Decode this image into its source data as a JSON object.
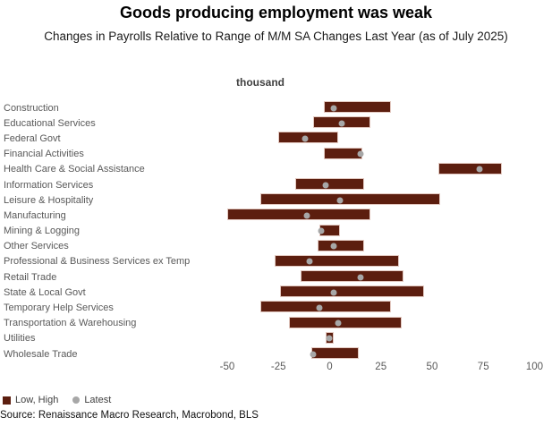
{
  "title": "Goods producing employment was weak",
  "subtitle": "Changes in Payrolls Relative to Range of M/M SA Changes Last Year (as of July 2025)",
  "axis_title": "thousand",
  "legend": {
    "range_label": "Low, High",
    "latest_label": "Latest"
  },
  "source": "Source: Renaissance Macro Research, Macrobond, BLS",
  "colors": {
    "bar": "#5c1e0f",
    "bar_border": "#e3c9c1",
    "dot": "#a7a7a7",
    "tick_text": "#595959",
    "label_text": "#595959"
  },
  "chart_data": {
    "type": "bar",
    "subtype": "horizontal-range-with-point",
    "title": "Goods producing employment was weak",
    "xlabel": "thousand",
    "x_ticks": [
      -50,
      -25,
      0,
      25,
      50,
      75,
      100
    ],
    "x_range": [
      -52.6,
      104.6
    ],
    "grid": false,
    "legend_position": "bottom-left",
    "categories": [
      "Construction",
      "Educational Services",
      "Federal Govt",
      "Financial Activities",
      "Health Care & Social Assistance",
      "Information Services",
      "Leisure & Hospitality",
      "Manufacturing",
      "Mining & Logging",
      "Other Services",
      "Professional & Business Services ex Temp",
      "Retail Trade",
      "State & Local Govt",
      "Temporary Help Services",
      "Transportation & Warehousing",
      "Utilities",
      "Wholesale Trade"
    ],
    "series": [
      {
        "name": "Low",
        "values": [
          -3,
          -8,
          -25,
          -3,
          53,
          -17,
          -34,
          -50,
          -5,
          -6,
          -27,
          -14,
          -24,
          -34,
          -20,
          -2,
          -9
        ]
      },
      {
        "name": "High",
        "values": [
          30,
          20,
          4,
          16,
          84,
          17,
          54,
          20,
          5,
          17,
          34,
          36,
          46,
          30,
          35,
          2,
          14
        ]
      },
      {
        "name": "Latest",
        "values": [
          2,
          6,
          -12,
          15,
          73,
          -2,
          5,
          -11,
          -4,
          2,
          -10,
          15,
          2,
          -5,
          4,
          0,
          -8
        ]
      }
    ]
  }
}
